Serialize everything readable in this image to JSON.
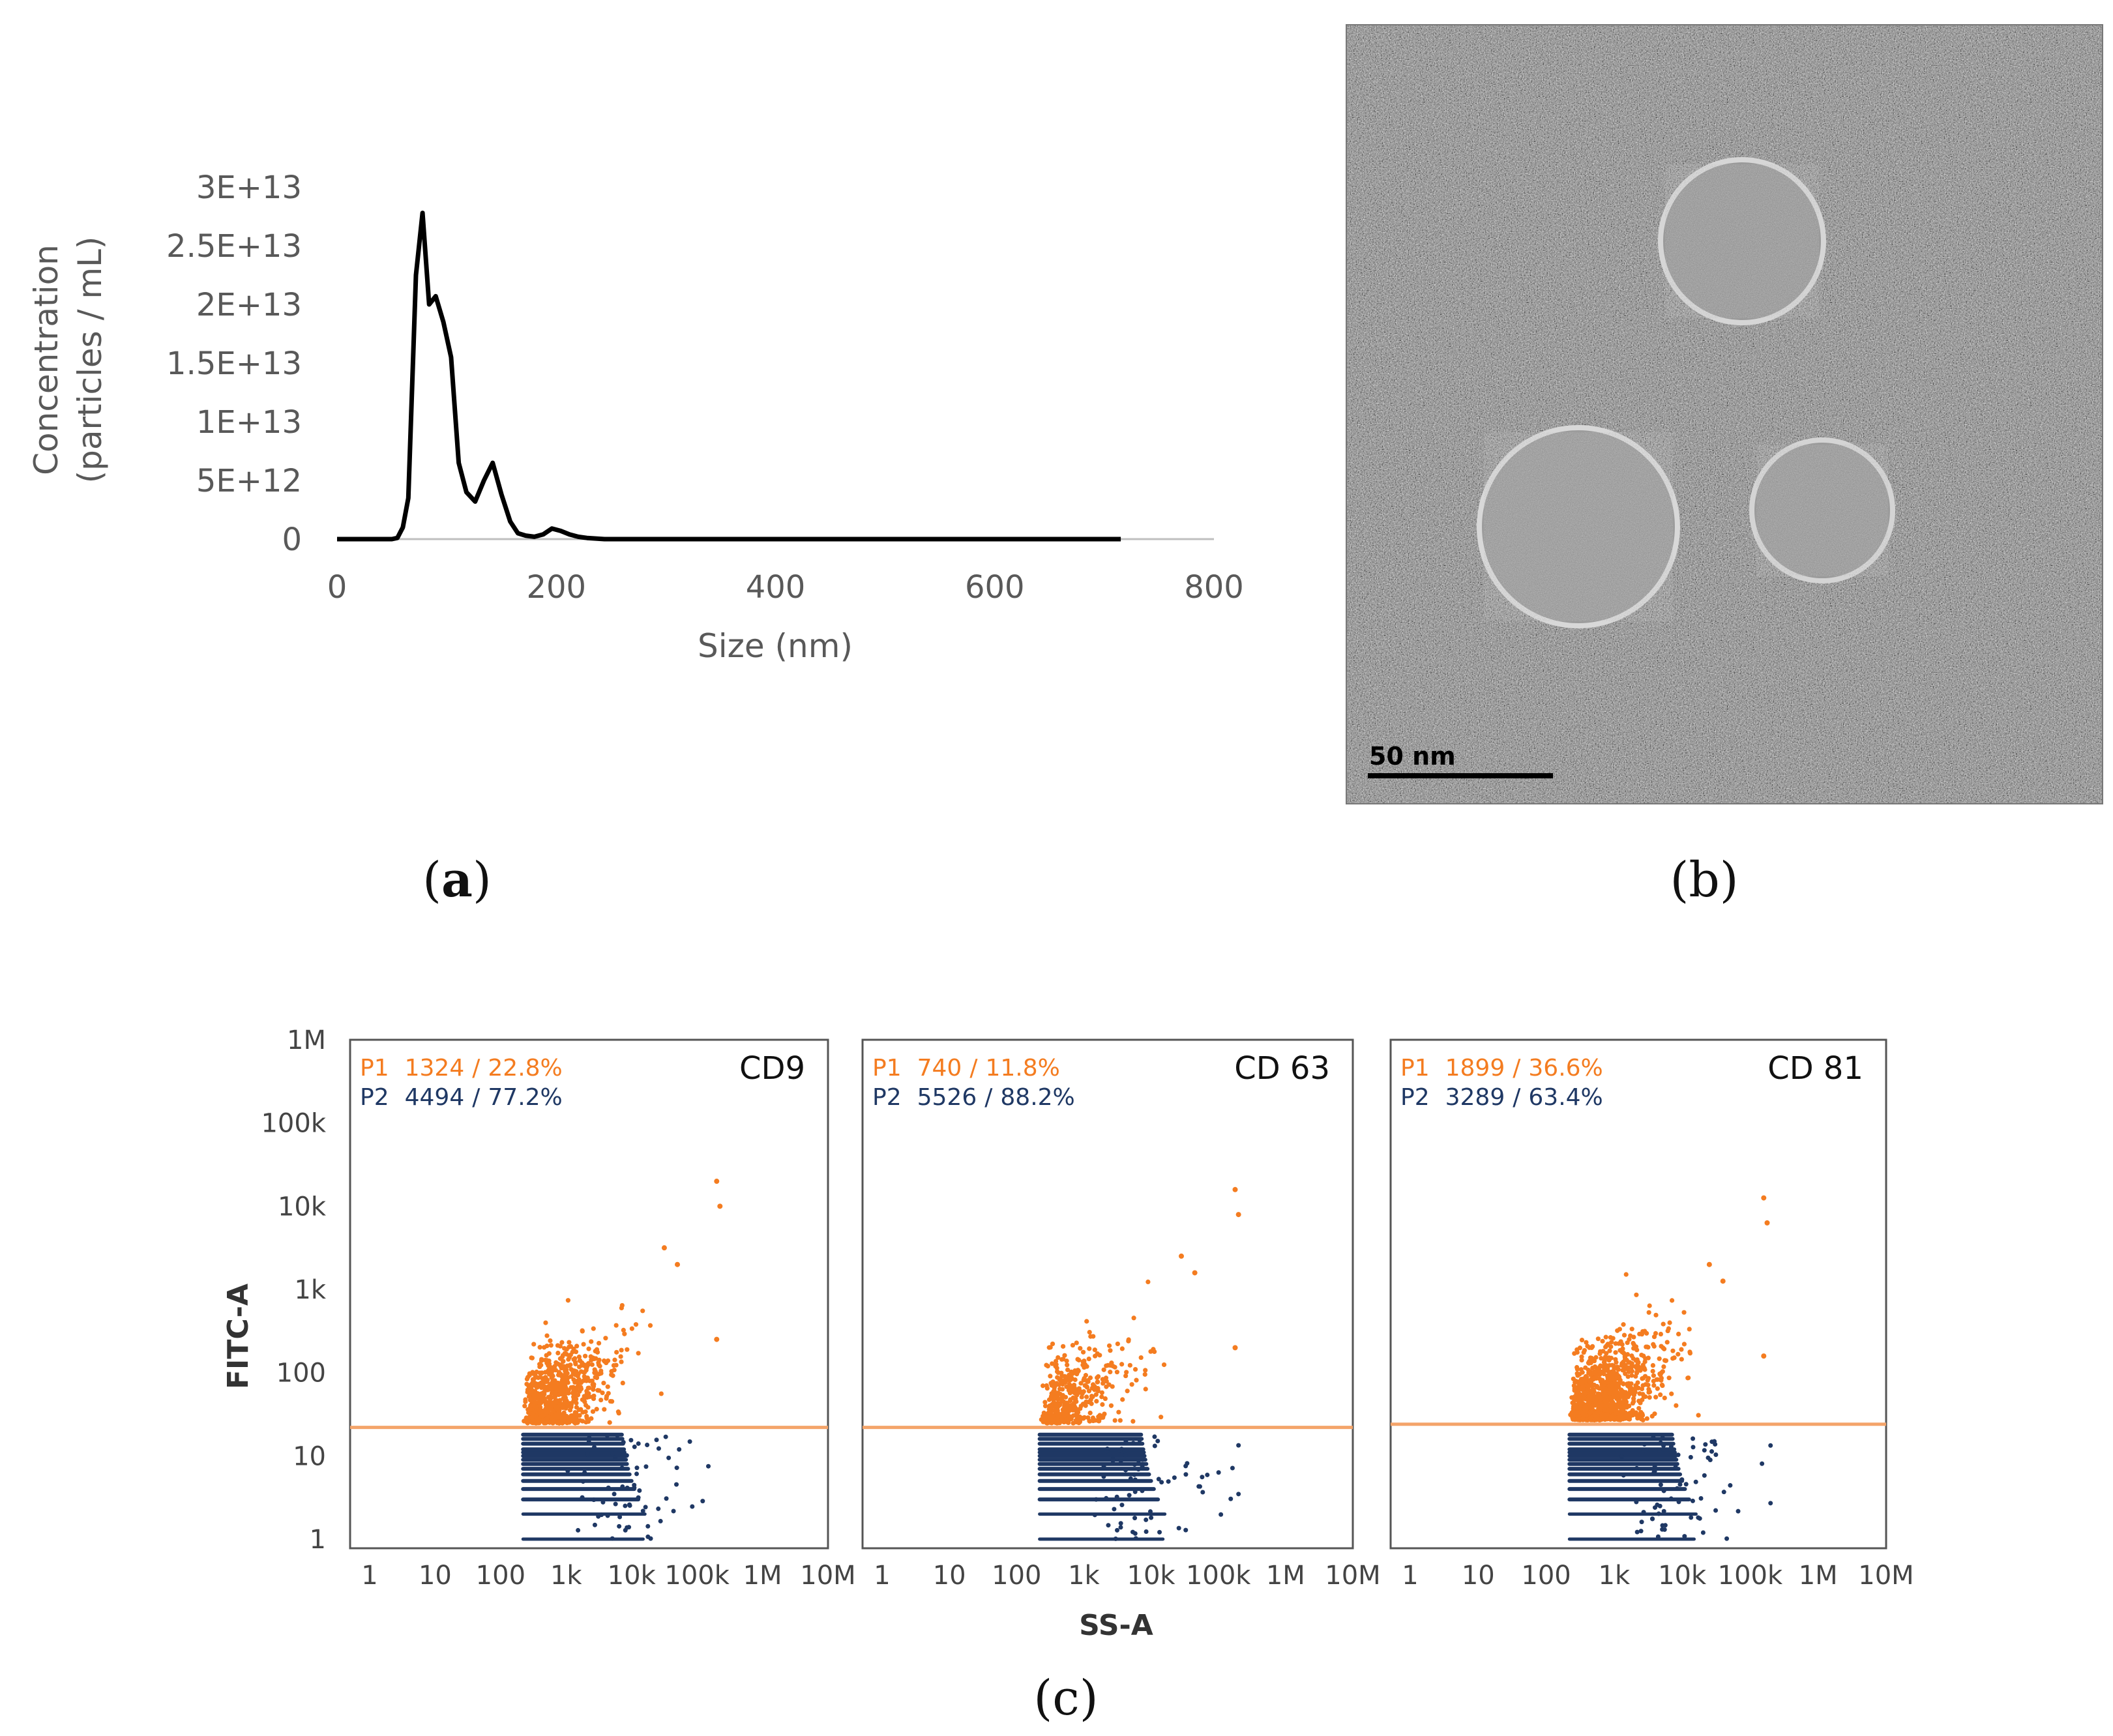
{
  "panels": {
    "a": {
      "label_open": "(",
      "label_letter": "a",
      "label_close": ")",
      "chart_data": {
        "type": "line",
        "xlabel": "Size (nm)",
        "ylabel_line1": "Concentration",
        "ylabel_line2": "(particles / mL)",
        "xlim": [
          0,
          800
        ],
        "ylim": [
          0,
          30000000000000.0
        ],
        "x_ticks": [
          0,
          200,
          400,
          600,
          800
        ],
        "x_tick_labels": [
          "0",
          "200",
          "400",
          "600",
          "800"
        ],
        "y_ticks": [
          0,
          5000000000000.0,
          10000000000000.0,
          15000000000000.0,
          20000000000000.0,
          25000000000000.0,
          30000000000000.0
        ],
        "y_tick_labels": [
          "0",
          "5E+12",
          "1E+13",
          "1.5E+13",
          "2E+13",
          "2.5E+13",
          "3E+13"
        ],
        "series": [
          {
            "name": "Concentration",
            "color": "#000000",
            "x": [
              0,
              50,
              55,
              60,
              65,
              72,
              78,
              84,
              90,
              97,
              104,
              111,
              118,
              126,
              134,
              142,
              150,
              158,
              165,
              172,
              180,
              188,
              196,
              204,
              212,
              220,
              228,
              236,
              244,
              252,
              262,
              270,
              280,
              300,
              400,
              500,
              600,
              715
            ],
            "y": [
              0,
              0,
              100000000000.0,
              1000000000000.0,
              3500000000000.0,
              22500000000000.0,
              27800000000000.0,
              20000000000000.0,
              20700000000000.0,
              18500000000000.0,
              15500000000000.0,
              6500000000000.0,
              4000000000000.0,
              3200000000000.0,
              5000000000000.0,
              6500000000000.0,
              3800000000000.0,
              1500000000000.0,
              500000000000.0,
              300000000000.0,
              200000000000.0,
              400000000000.0,
              900000000000.0,
              700000000000.0,
              400000000000.0,
              200000000000.0,
              100000000000.0,
              50000000000.0,
              0,
              0,
              0,
              0,
              0,
              0,
              0,
              0,
              0,
              0
            ]
          }
        ]
      }
    },
    "b": {
      "label_open": "(",
      "label_letter": "b",
      "label_close": ")",
      "scale_bar_label": "50 nm"
    },
    "c": {
      "label_open": "(",
      "label_letter": "c",
      "label_close": ")",
      "colors": {
        "p1": "#f47c20",
        "p2": "#1f3864",
        "gate": "#f4a46a"
      },
      "chart_data": [
        {
          "type": "scatter",
          "marker": "CD9",
          "xlabel": "SS-A",
          "ylabel": "FITC-A",
          "x_scale": "log",
          "y_scale": "log",
          "xlim": [
            1,
            10000000
          ],
          "ylim": [
            1,
            1000000
          ],
          "x_tick_labels": [
            "1",
            "10",
            "100",
            "1k",
            "10k",
            "100k",
            "1M",
            "10M"
          ],
          "y_tick_labels": [
            "1",
            "10",
            "100",
            "1k",
            "10k",
            "100k",
            "1M"
          ],
          "gate_threshold": 22,
          "populations": [
            {
              "name": "P1",
              "count": "1324",
              "percent": "22.8%"
            },
            {
              "name": "P2",
              "count": "4494",
              "percent": "77.2%"
            }
          ]
        },
        {
          "type": "scatter",
          "marker": "CD 63",
          "xlabel": "SS-A",
          "ylabel": "FITC-A",
          "x_scale": "log",
          "y_scale": "log",
          "xlim": [
            1,
            10000000
          ],
          "ylim": [
            1,
            1000000
          ],
          "x_tick_labels": [
            "1",
            "10",
            "100",
            "1k",
            "10k",
            "100k",
            "1M",
            "10M"
          ],
          "y_tick_labels": [
            "1",
            "10",
            "100",
            "1k",
            "10k",
            "100k",
            "1M"
          ],
          "gate_threshold": 22,
          "populations": [
            {
              "name": "P1",
              "count": "740",
              "percent": "11.8%"
            },
            {
              "name": "P2",
              "count": "5526",
              "percent": "88.2%"
            }
          ]
        },
        {
          "type": "scatter",
          "marker": "CD 81",
          "xlabel": "SS-A",
          "ylabel": "FITC-A",
          "x_scale": "log",
          "y_scale": "log",
          "xlim": [
            1,
            10000000
          ],
          "ylim": [
            1,
            1000000
          ],
          "x_tick_labels": [
            "1",
            "10",
            "100",
            "1k",
            "10k",
            "100k",
            "1M",
            "10M"
          ],
          "y_tick_labels": [
            "1",
            "10",
            "100",
            "1k",
            "10k",
            "100k",
            "1M"
          ],
          "gate_threshold": 24,
          "populations": [
            {
              "name": "P1",
              "count": "1899",
              "percent": "36.6%"
            },
            {
              "name": "P2",
              "count": "3289",
              "percent": "63.4%"
            }
          ]
        }
      ]
    }
  }
}
